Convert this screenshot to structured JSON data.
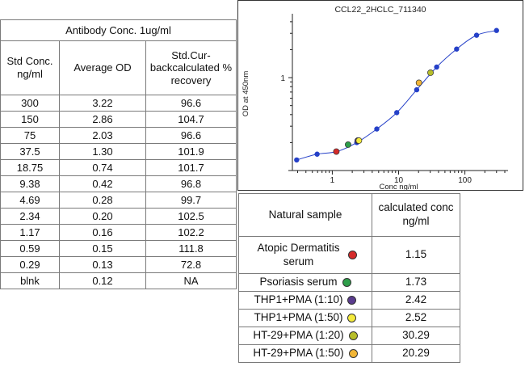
{
  "std_table": {
    "caption": "Antibody Conc. 1ug/ml",
    "headers": [
      "Std Conc. ng/ml",
      "Average OD",
      "Std.Cur-backcalculated % recovery"
    ],
    "rows": [
      [
        "300",
        "3.22",
        "96.6"
      ],
      [
        "150",
        "2.86",
        "104.7"
      ],
      [
        "75",
        "2.03",
        "96.6"
      ],
      [
        "37.5",
        "1.30",
        "101.9"
      ],
      [
        "18.75",
        "0.74",
        "101.7"
      ],
      [
        "9.38",
        "0.42",
        "96.8"
      ],
      [
        "4.69",
        "0.28",
        "99.7"
      ],
      [
        "2.34",
        "0.20",
        "102.5"
      ],
      [
        "1.17",
        "0.16",
        "102.2"
      ],
      [
        "0.59",
        "0.15",
        "111.8"
      ],
      [
        "0.29",
        "0.13",
        "72.8"
      ],
      [
        "blnk",
        "0.12",
        "NA"
      ]
    ]
  },
  "sample_table": {
    "headers": [
      "Natural sample",
      "calculated conc ng/ml"
    ],
    "rows": [
      {
        "name": "Atopic Dermatitis serum",
        "conc": "1.15",
        "color": "#d42a2a"
      },
      {
        "name": "Psoriasis serum",
        "conc": "1.73",
        "color": "#2e9e4a"
      },
      {
        "name": "THP1+PMA (1:10)",
        "conc": "2.42",
        "color": "#5a3c8e"
      },
      {
        "name": "THP1+PMA (1:50)",
        "conc": "2.52",
        "color": "#f4ea3c"
      },
      {
        "name": "HT-29+PMA (1:20)",
        "conc": "30.29",
        "color": "#b7be2a"
      },
      {
        "name": "HT-29+PMA (1:50)",
        "conc": "20.29",
        "color": "#f2b636"
      }
    ]
  },
  "chart_data": {
    "type": "scatter",
    "title": "CCL22_2HCLC_711340",
    "xlabel": "Conc ng/ml",
    "ylabel": "OD at 450nm",
    "x_scale": "log",
    "y_scale": "log",
    "xlim": [
      0.25,
      400
    ],
    "ylim": [
      0.1,
      4.5
    ],
    "x_ticks": [
      "1",
      "10",
      "100"
    ],
    "y_ticks": [
      "1"
    ],
    "grid": false,
    "legend": "none",
    "line_color": "#2540c8",
    "standard_color": "#2540c8",
    "standards": {
      "x": [
        300,
        150,
        75,
        37.5,
        18.75,
        9.38,
        4.69,
        2.34,
        1.17,
        0.59,
        0.29
      ],
      "y": [
        3.22,
        2.86,
        2.03,
        1.3,
        0.74,
        0.42,
        0.28,
        0.2,
        0.16,
        0.15,
        0.13
      ]
    },
    "samples": [
      {
        "x": 1.15,
        "y": 0.16,
        "color": "#d42a2a"
      },
      {
        "x": 1.73,
        "y": 0.19,
        "color": "#2e9e4a"
      },
      {
        "x": 2.42,
        "y": 0.21,
        "color": "#5a3c8e"
      },
      {
        "x": 2.52,
        "y": 0.21,
        "color": "#f4ea3c"
      },
      {
        "x": 30.29,
        "y": 1.13,
        "color": "#b7be2a"
      },
      {
        "x": 20.29,
        "y": 0.88,
        "color": "#f2b636"
      }
    ]
  }
}
